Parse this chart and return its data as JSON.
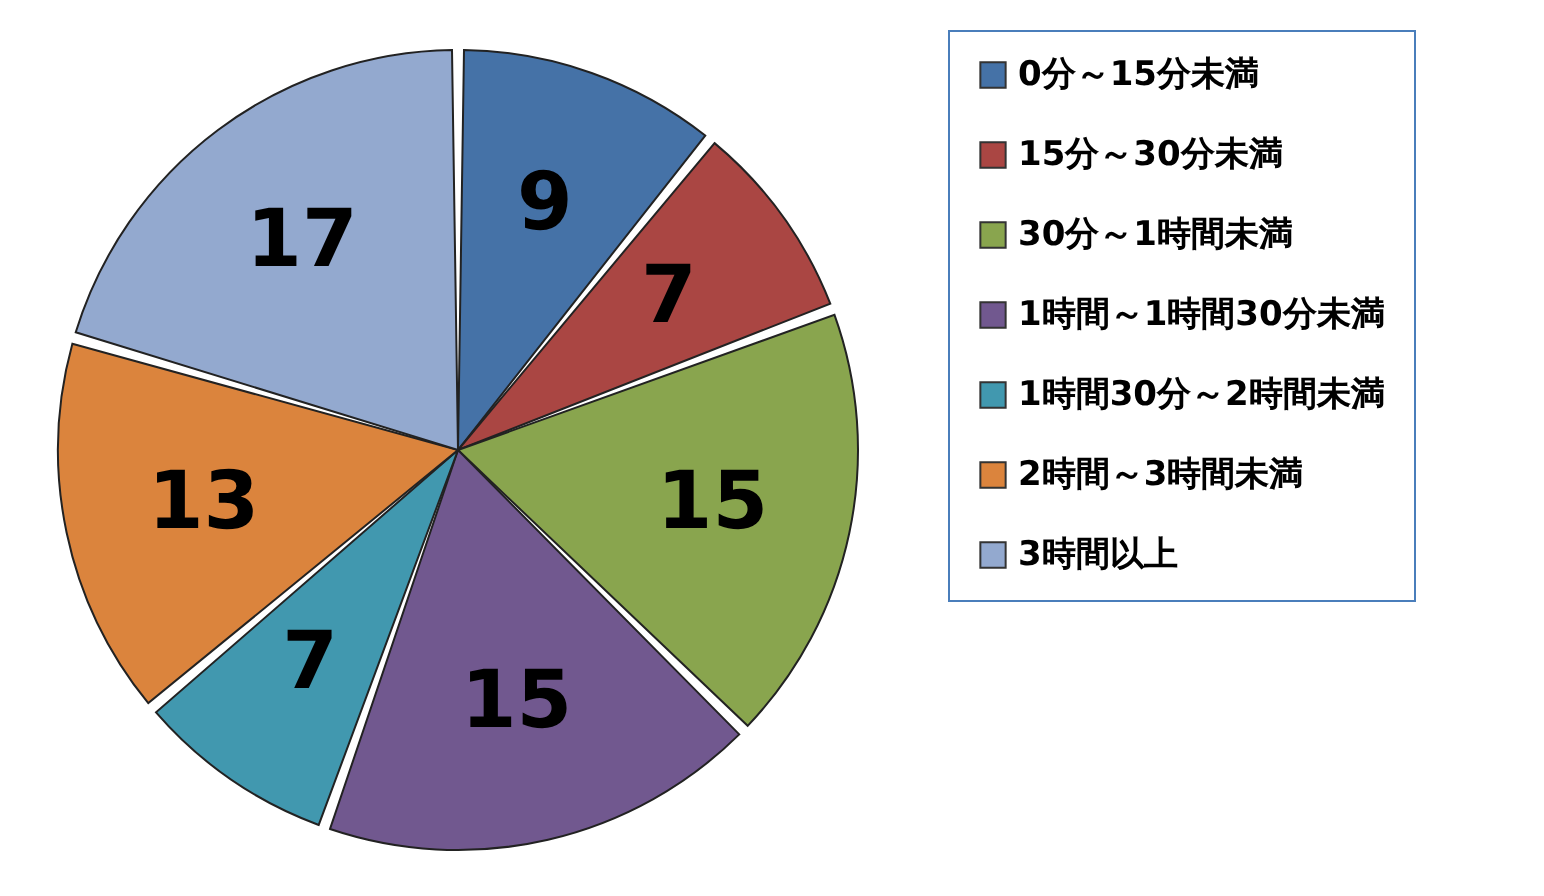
{
  "chart_data": {
    "type": "pie",
    "categories": [
      "0分～15分未満",
      "15分～30分未満",
      "30分～1時間未満",
      "1時間～1時間30分未満",
      "1時間30分～2時間未満",
      "2時間～3時間未満",
      "3時間以上"
    ],
    "values": [
      9,
      7,
      15,
      15,
      7,
      13,
      17
    ],
    "colors": [
      "#4572a7",
      "#aa4643",
      "#89a54e",
      "#71588f",
      "#4198af",
      "#db843d",
      "#93a9cf"
    ],
    "data_labels": true,
    "legend": "right"
  }
}
